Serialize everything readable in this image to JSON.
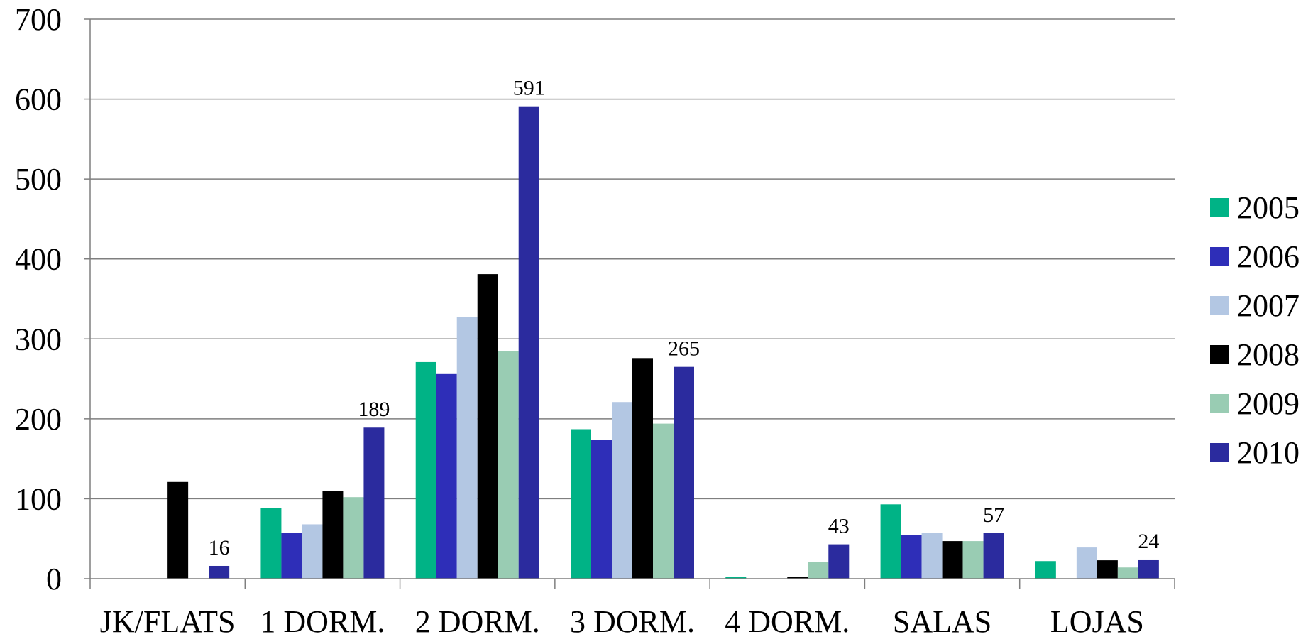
{
  "chart_data": {
    "type": "bar",
    "title": "",
    "xlabel": "",
    "ylabel": "",
    "ylim": [
      0,
      700
    ],
    "yticks": [
      0,
      100,
      200,
      300,
      400,
      500,
      600,
      700
    ],
    "grid": true,
    "legend_position": "right",
    "categories": [
      "JK/FLATS",
      "1 DORM.",
      "2 DORM.",
      "3 DORM.",
      "4 DORM.",
      "SALAS",
      "LOJAS"
    ],
    "series": [
      {
        "name": "2005",
        "color": "#00B386",
        "values": [
          0,
          88,
          271,
          187,
          2,
          93,
          22
        ]
      },
      {
        "name": "2006",
        "color": "#2E2EB8",
        "values": [
          0,
          57,
          256,
          174,
          0,
          55,
          0
        ]
      },
      {
        "name": "2007",
        "color": "#B3C7E3",
        "values": [
          0,
          68,
          327,
          221,
          0,
          57,
          39
        ]
      },
      {
        "name": "2008",
        "color": "#000000",
        "values": [
          121,
          110,
          381,
          276,
          2,
          47,
          23
        ]
      },
      {
        "name": "2009",
        "color": "#99CCB3",
        "values": [
          0,
          102,
          285,
          194,
          21,
          47,
          14
        ]
      },
      {
        "name": "2010",
        "color": "#2B2B9E",
        "values": [
          16,
          189,
          591,
          265,
          43,
          57,
          24
        ]
      }
    ],
    "data_labels": {
      "series": "2010",
      "labels": [
        "16",
        "189",
        "591",
        "265",
        "43",
        "57",
        "24"
      ]
    }
  }
}
